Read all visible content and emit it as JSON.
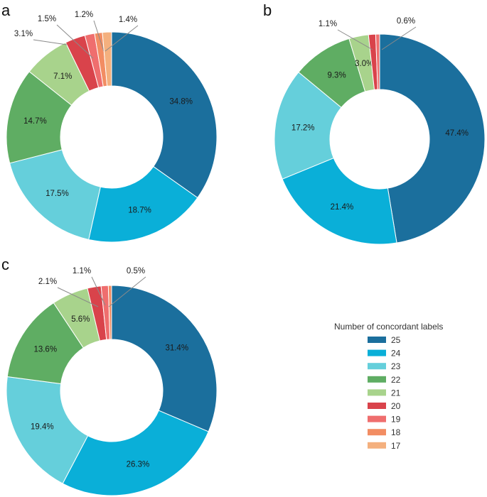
{
  "legend": {
    "title": "Number of concordant labels",
    "entries": [
      {
        "label": "25",
        "color": "#1b6f9d"
      },
      {
        "label": "24",
        "color": "#0aafd8"
      },
      {
        "label": "23",
        "color": "#65cfdb"
      },
      {
        "label": "22",
        "color": "#5fad63"
      },
      {
        "label": "21",
        "color": "#a8d38c"
      },
      {
        "label": "20",
        "color": "#d9434b"
      },
      {
        "label": "19",
        "color": "#ef6e6e"
      },
      {
        "label": "18",
        "color": "#f28d63"
      },
      {
        "label": "17",
        "color": "#f4b07e"
      }
    ]
  },
  "chart_data": [
    {
      "panel": "a",
      "type": "pie",
      "donut": true,
      "categories": [
        "25",
        "24",
        "23",
        "22",
        "21",
        "20",
        "19",
        "18",
        "17"
      ],
      "values": [
        34.8,
        18.7,
        17.5,
        14.7,
        7.1,
        3.1,
        1.5,
        1.2,
        1.4
      ],
      "labels": [
        "34.8%",
        "18.7%",
        "17.5%",
        "14.7%",
        "7.1%",
        "3.1%",
        "1.5%",
        "1.2%",
        "1.4%"
      ]
    },
    {
      "panel": "b",
      "type": "pie",
      "donut": true,
      "categories": [
        "25",
        "24",
        "23",
        "22",
        "21",
        "20",
        "19"
      ],
      "values": [
        47.4,
        21.4,
        17.2,
        9.3,
        3.0,
        1.1,
        0.6
      ],
      "labels": [
        "47.4%",
        "21.4%",
        "17.2%",
        "9.3%",
        "3.0%",
        "1.1%",
        "0.6%"
      ]
    },
    {
      "panel": "c",
      "type": "pie",
      "donut": true,
      "categories": [
        "25",
        "24",
        "23",
        "22",
        "21",
        "20",
        "19",
        "18"
      ],
      "values": [
        31.4,
        26.3,
        19.4,
        13.6,
        5.6,
        2.1,
        1.1,
        0.5
      ],
      "labels": [
        "31.4%",
        "26.3%",
        "19.4%",
        "13.6%",
        "5.6%",
        "2.1%",
        "1.1%",
        "0.5%"
      ]
    }
  ]
}
